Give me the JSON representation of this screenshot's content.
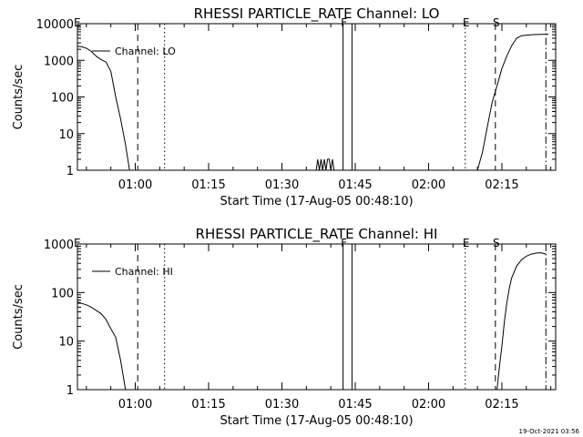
{
  "footer": {
    "timestamp": "19-Oct-2021 03:56"
  },
  "chart_data": [
    {
      "type": "line",
      "title": "RHESSI PARTICLE_RATE Channel: LO",
      "xlabel": "Start Time (17-Aug-05 00:48:10)",
      "ylabel": "Counts/sec",
      "y_scale": "log",
      "xlim": [
        "00:48:10",
        "02:26:00"
      ],
      "ylim": [
        1,
        10000
      ],
      "x_tick_labels": [
        "01:00",
        "01:15",
        "01:30",
        "01:45",
        "02:00",
        "02:15"
      ],
      "y_tick_labels": [
        "1",
        "10",
        "100",
        "1000",
        "10000"
      ],
      "legend": {
        "position": "top-left",
        "entries": [
          "Channel: LO"
        ]
      },
      "series": [
        {
          "name": "Channel: LO",
          "points": [
            [
              "00:48:10",
              2400
            ],
            [
              "00:49:00",
              2350
            ],
            [
              "00:50:00",
              2150
            ],
            [
              "00:51:00",
              1750
            ],
            [
              "00:52:00",
              1300
            ],
            [
              "00:53:00",
              1050
            ],
            [
              "00:54:00",
              900
            ],
            [
              "00:55:00",
              500
            ],
            [
              "00:56:00",
              100
            ],
            [
              "00:57:00",
              25
            ],
            [
              "00:58:00",
              5
            ],
            [
              "00:58:50",
              1
            ],
            [
              "01:37:00",
              1
            ],
            [
              "01:37:20",
              2
            ],
            [
              "01:37:40",
              1
            ],
            [
              "01:38:00",
              2
            ],
            [
              "01:38:20",
              1
            ],
            [
              "01:38:40",
              2
            ],
            [
              "01:39:00",
              1
            ],
            [
              "01:39:20",
              2
            ],
            [
              "01:39:40",
              2
            ],
            [
              "01:40:00",
              1
            ],
            [
              "01:40:20",
              2
            ],
            [
              "01:40:40",
              1
            ],
            [
              "02:10:00",
              1
            ],
            [
              "02:11:00",
              3
            ],
            [
              "02:12:00",
              15
            ],
            [
              "02:13:00",
              70
            ],
            [
              "02:14:00",
              200
            ],
            [
              "02:15:00",
              600
            ],
            [
              "02:16:00",
              1300
            ],
            [
              "02:17:00",
              2500
            ],
            [
              "02:18:00",
              4000
            ],
            [
              "02:19:00",
              4700
            ],
            [
              "02:21:00",
              5000
            ],
            [
              "02:23:00",
              5100
            ],
            [
              "02:24:30",
              5200
            ]
          ]
        }
      ],
      "markers": [
        {
          "label": "E",
          "time": "00:48:30",
          "style": "none"
        },
        {
          "label": "",
          "time": "01:00:30",
          "style": "dashed"
        },
        {
          "label": "",
          "time": "01:06:00",
          "style": "dotted"
        },
        {
          "label": "F",
          "time": "01:42:30",
          "style": "solid"
        },
        {
          "label": "",
          "time": "01:44:20",
          "style": "solid"
        },
        {
          "label": "E",
          "time": "02:07:30",
          "style": "dotted"
        },
        {
          "label": "S",
          "time": "02:13:40",
          "style": "dashed"
        },
        {
          "label": "",
          "time": "02:24:00",
          "style": "dashdot"
        }
      ]
    },
    {
      "type": "line",
      "title": "RHESSI PARTICLE_RATE Channel: HI",
      "xlabel": "Start Time (17-Aug-05 00:48:10)",
      "ylabel": "Counts/sec",
      "y_scale": "log",
      "xlim": [
        "00:48:10",
        "02:26:00"
      ],
      "ylim": [
        1,
        1000
      ],
      "x_tick_labels": [
        "01:00",
        "01:15",
        "01:30",
        "01:45",
        "02:00",
        "02:15"
      ],
      "y_tick_labels": [
        "1",
        "10",
        "100",
        "1000"
      ],
      "legend": {
        "position": "top-left",
        "entries": [
          "Channel: HI"
        ]
      },
      "series": [
        {
          "name": "Channel: HI",
          "points": [
            [
              "00:48:10",
              65
            ],
            [
              "00:49:00",
              60
            ],
            [
              "00:50:00",
              56
            ],
            [
              "00:51:00",
              50
            ],
            [
              "00:52:00",
              43
            ],
            [
              "00:53:00",
              37
            ],
            [
              "00:54:00",
              28
            ],
            [
              "00:55:00",
              18
            ],
            [
              "00:56:00",
              12
            ],
            [
              "00:57:00",
              4
            ],
            [
              "00:58:00",
              1
            ],
            [
              "02:14:00",
              1
            ],
            [
              "02:14:30",
              3
            ],
            [
              "02:15:00",
              8
            ],
            [
              "02:15:30",
              25
            ],
            [
              "02:16:00",
              60
            ],
            [
              "02:16:30",
              120
            ],
            [
              "02:17:00",
              200
            ],
            [
              "02:18:00",
              350
            ],
            [
              "02:19:00",
              470
            ],
            [
              "02:20:00",
              560
            ],
            [
              "02:21:00",
              620
            ],
            [
              "02:22:00",
              650
            ],
            [
              "02:23:00",
              660
            ],
            [
              "02:24:00",
              620
            ]
          ]
        }
      ],
      "markers": [
        {
          "label": "E",
          "time": "00:48:30",
          "style": "none"
        },
        {
          "label": "",
          "time": "01:00:30",
          "style": "dashed"
        },
        {
          "label": "",
          "time": "01:06:00",
          "style": "dotted"
        },
        {
          "label": "F",
          "time": "01:42:30",
          "style": "solid"
        },
        {
          "label": "",
          "time": "01:44:20",
          "style": "solid"
        },
        {
          "label": "E",
          "time": "02:07:30",
          "style": "dotted"
        },
        {
          "label": "S",
          "time": "02:13:40",
          "style": "dashed"
        },
        {
          "label": "",
          "time": "02:24:00",
          "style": "dashdot"
        }
      ]
    }
  ]
}
